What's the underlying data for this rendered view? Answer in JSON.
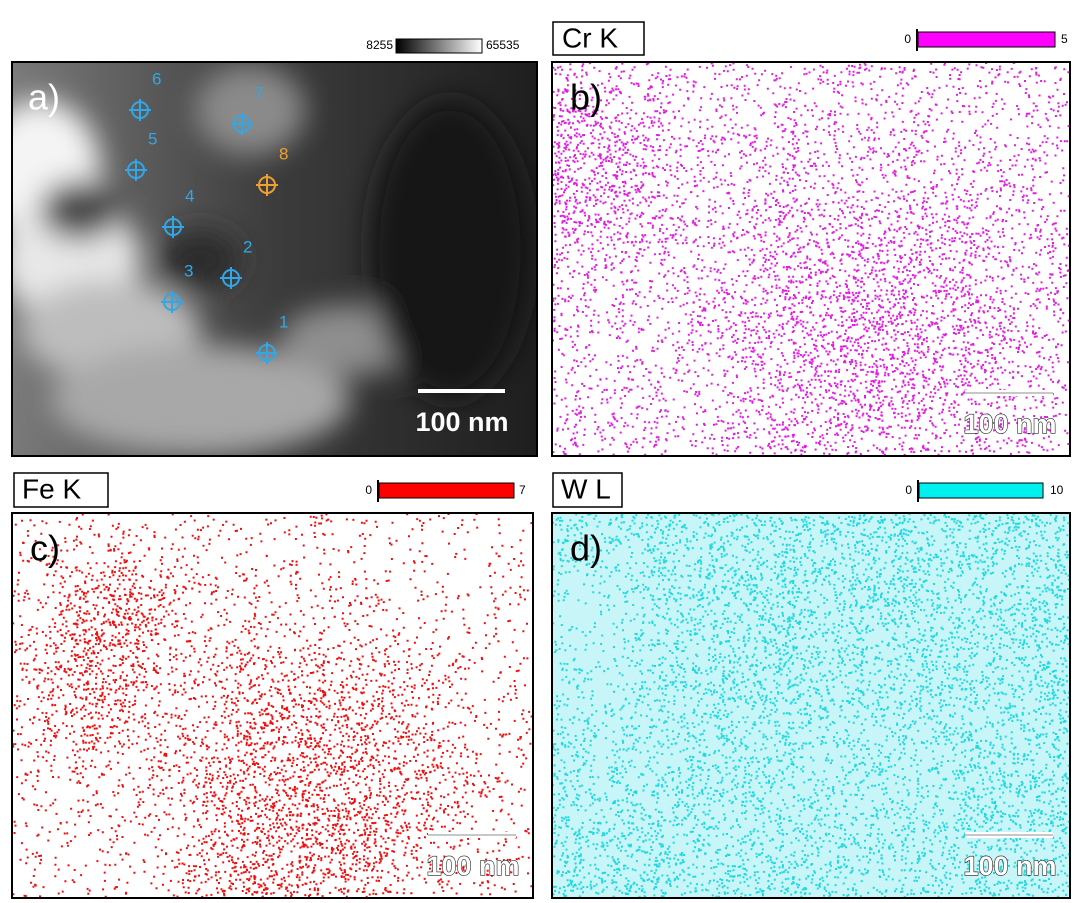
{
  "panels": [
    {
      "label": "a)",
      "scale_bar": "100 nm",
      "colorbar": {
        "min": 8255,
        "max": 65535
      },
      "markers": [
        1,
        2,
        3,
        4,
        5,
        6,
        7,
        8
      ]
    },
    {
      "label": "b)",
      "element": "Cr K",
      "scale_bar": "100 nm",
      "colorbar": {
        "min": 0,
        "max": 5
      }
    },
    {
      "label": "c)",
      "element": "Fe K",
      "scale_bar": "100 nm",
      "colorbar": {
        "min": 0,
        "max": 7
      }
    },
    {
      "label": "d)",
      "element": "W L",
      "scale_bar": "100 nm",
      "colorbar": {
        "min": 0,
        "max": 10
      }
    }
  ]
}
